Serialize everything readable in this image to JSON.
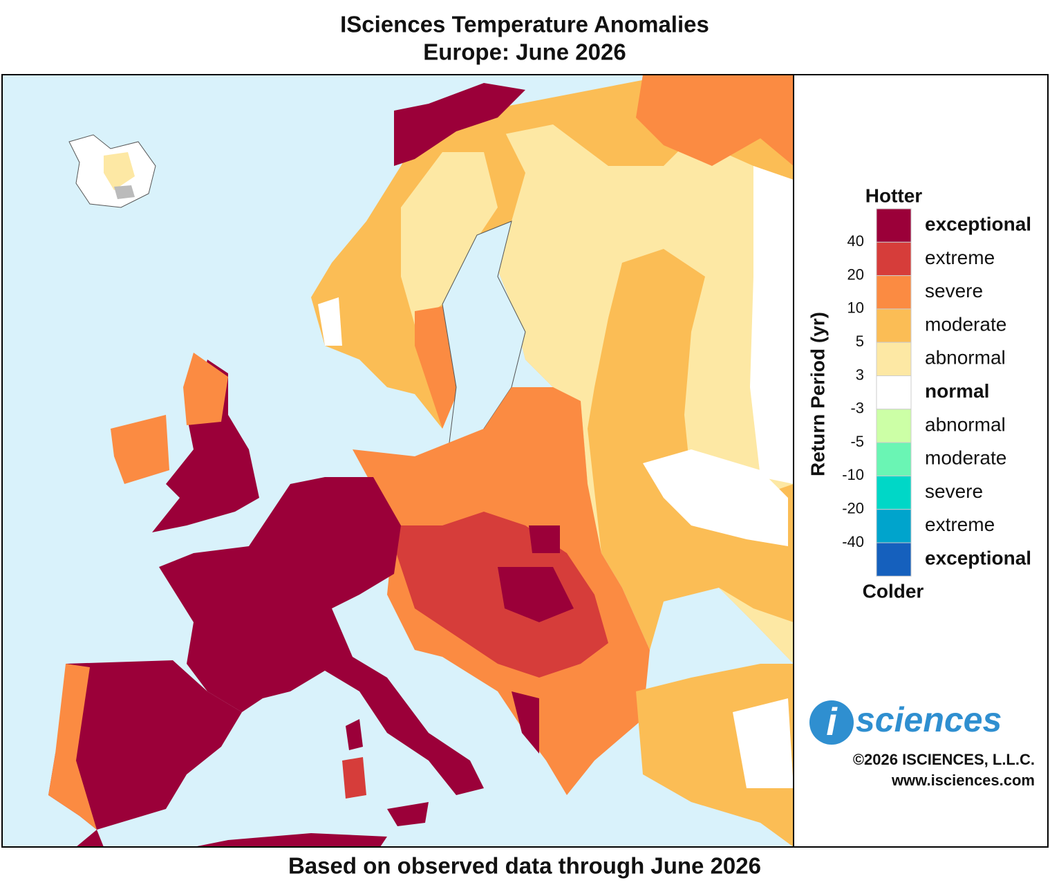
{
  "title": "ISciences Temperature Anomalies",
  "subtitle": "Europe: June 2026",
  "footer": "Based on observed data through June 2026",
  "legend": {
    "title": "Return Period (yr)",
    "top_label": "Hotter",
    "bottom_label": "Colder",
    "classes": [
      {
        "label": "exceptional",
        "color": "#9b0039"
      },
      {
        "label": "extreme",
        "color": "#d63d3a"
      },
      {
        "label": "severe",
        "color": "#fb8b42"
      },
      {
        "label": "moderate",
        "color": "#fbbd55"
      },
      {
        "label": "abnormal",
        "color": "#fde8a4"
      },
      {
        "label": "normal",
        "color": "#ffffff"
      },
      {
        "label": "abnormal",
        "color": "#ccffa6"
      },
      {
        "label": "moderate",
        "color": "#6af5b4"
      },
      {
        "label": "severe",
        "color": "#00d7c7"
      },
      {
        "label": "extreme",
        "color": "#00a4cc"
      },
      {
        "label": "exceptional",
        "color": "#1560bd"
      }
    ],
    "ticks": [
      40,
      20,
      10,
      5,
      3,
      -3,
      -5,
      -10,
      -20,
      -40
    ]
  },
  "logo": {
    "letter": "i",
    "text": "sciences"
  },
  "copyright": "©2026 ISCIENCES, L.L.C.",
  "url": "www.isciences.com"
}
